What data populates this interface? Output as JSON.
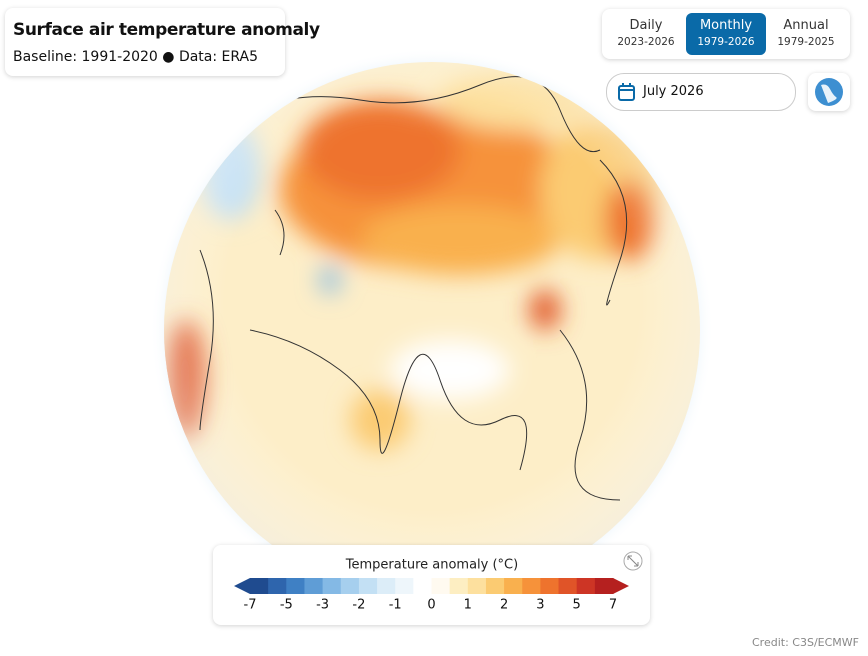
{
  "header": {
    "title": "Surface air temperature anomaly",
    "subtitle": "Baseline: 1991-2020 ● Data: ERA5"
  },
  "tabs": [
    {
      "label": "Daily",
      "range": "2023-2026",
      "active": false
    },
    {
      "label": "Monthly",
      "range": "1979-2026",
      "active": true
    },
    {
      "label": "Annual",
      "range": "1979-2025",
      "active": false
    }
  ],
  "date": "July 2026",
  "legend": {
    "title": "Temperature anomaly (°C)",
    "ticks": [
      -7,
      -5,
      -3,
      -2,
      -1,
      0,
      1,
      2,
      3,
      5,
      7
    ],
    "colors": [
      "#1f4b8f",
      "#2e65ad",
      "#3f80c4",
      "#5f9dd6",
      "#84b9e5",
      "#a6cfee",
      "#c3e0f4",
      "#dcedf8",
      "#eef6fb",
      "#ffffff",
      "#fffaf0",
      "#fdeec2",
      "#fde09e",
      "#fbcb72",
      "#f9b04e",
      "#f6923a",
      "#ee732d",
      "#e05428",
      "#cd3525",
      "#b5201f"
    ]
  },
  "credit": "Credit: C3S/ECMWF"
}
